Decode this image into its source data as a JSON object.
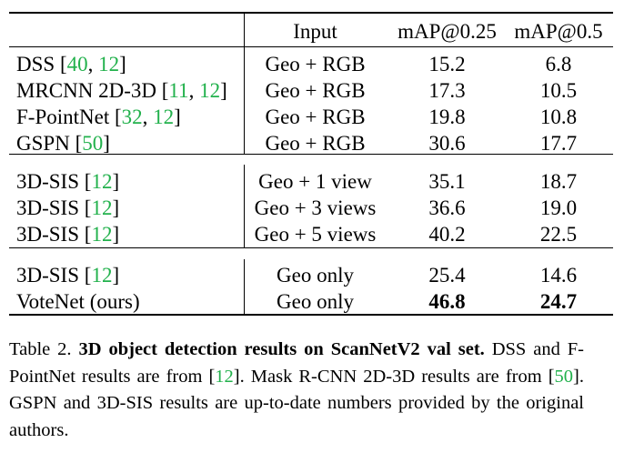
{
  "table": {
    "headers": {
      "method": "",
      "input": "Input",
      "map25": "mAP@0.25",
      "map50": "mAP@0.5"
    },
    "groups": [
      {
        "rows": [
          {
            "method": "DSS",
            "refs": [
              "40",
              "12"
            ],
            "input": "Geo + RGB",
            "map25": "15.2",
            "map50": "6.8"
          },
          {
            "method": "MRCNN 2D-3D",
            "refs": [
              "11",
              "12"
            ],
            "input": "Geo + RGB",
            "map25": "17.3",
            "map50": "10.5"
          },
          {
            "method": "F-PointNet",
            "refs": [
              "32",
              "12"
            ],
            "input": "Geo + RGB",
            "map25": "19.8",
            "map50": "10.8"
          },
          {
            "method": "GSPN",
            "refs": [
              "50"
            ],
            "input": "Geo + RGB",
            "map25": "30.6",
            "map50": "17.7"
          }
        ]
      },
      {
        "rows": [
          {
            "method": "3D-SIS",
            "refs": [
              "12"
            ],
            "input": "Geo + 1 view",
            "map25": "35.1",
            "map50": "18.7"
          },
          {
            "method": "3D-SIS",
            "refs": [
              "12"
            ],
            "input": "Geo + 3 views",
            "map25": "36.6",
            "map50": "19.0"
          },
          {
            "method": "3D-SIS",
            "refs": [
              "12"
            ],
            "input": "Geo + 5 views",
            "map25": "40.2",
            "map50": "22.5"
          }
        ]
      },
      {
        "rows": [
          {
            "method": "3D-SIS",
            "refs": [
              "12"
            ],
            "input": "Geo only",
            "map25": "25.4",
            "map50": "14.6"
          },
          {
            "method": "VoteNet (ours)",
            "refs": [],
            "input": "Geo only",
            "map25": "46.8",
            "map50": "24.7",
            "bold": true
          }
        ]
      }
    ]
  },
  "caption": {
    "label": "Table 2.",
    "bold_title": "3D object detection results on ScanNetV2 val set.",
    "text_1": "DSS and F-PointNet results are from [",
    "ref_1": "12",
    "text_2": "]. Mask R-CNN 2D-3D results are from [",
    "ref_2": "50",
    "text_3": "]. GSPN and 3D-SIS results are up-to-date numbers provided by the original authors."
  },
  "colors": {
    "citation": "#22b14c",
    "text": "#000000",
    "rule": "#000000"
  }
}
